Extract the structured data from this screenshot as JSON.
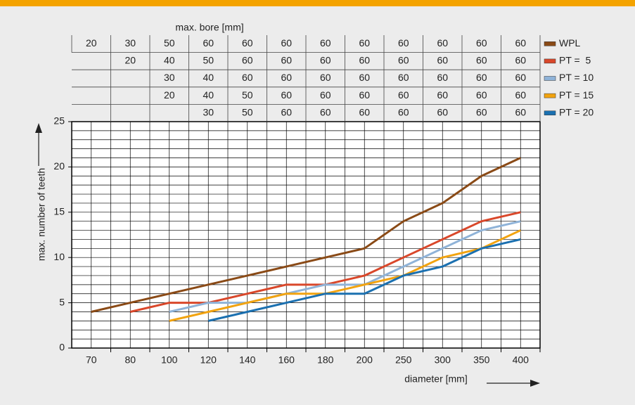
{
  "chart_data": {
    "type": "line",
    "bore_table": {
      "title": "max. bore [mm]",
      "rows": [
        [
          20,
          30,
          50,
          60,
          60,
          60,
          60,
          60,
          60,
          60,
          60,
          60
        ],
        [
          null,
          20,
          40,
          50,
          60,
          60,
          60,
          60,
          60,
          60,
          60,
          60
        ],
        [
          null,
          null,
          30,
          40,
          60,
          60,
          60,
          60,
          60,
          60,
          60,
          60
        ],
        [
          null,
          null,
          20,
          40,
          50,
          60,
          60,
          60,
          60,
          60,
          60,
          60
        ],
        [
          null,
          null,
          null,
          30,
          50,
          60,
          60,
          60,
          60,
          60,
          60,
          60
        ]
      ]
    },
    "x_label": "diameter [mm]",
    "y_label": "max. number of teeth",
    "categories": [
      "70",
      "80",
      "100",
      "120",
      "140",
      "160",
      "180",
      "200",
      "250",
      "300",
      "350",
      "400"
    ],
    "series": [
      {
        "name": "WPL",
        "color": "#8a4a16",
        "values": [
          4,
          5,
          6,
          7,
          8,
          9,
          10,
          11,
          14,
          16,
          19,
          21
        ]
      },
      {
        "name": "PT =  5",
        "color": "#d9472a",
        "values": [
          null,
          4,
          5,
          5,
          6,
          7,
          7,
          8,
          10,
          12,
          14,
          15
        ]
      },
      {
        "name": "PT = 10",
        "color": "#8fb3d8",
        "values": [
          null,
          null,
          4,
          5,
          5,
          6,
          7,
          7,
          9,
          11,
          13,
          14
        ]
      },
      {
        "name": "PT = 15",
        "color": "#f2a30f",
        "values": [
          null,
          null,
          3,
          4,
          5,
          6,
          6,
          7,
          8,
          10,
          11,
          13
        ]
      },
      {
        "name": "PT = 20",
        "color": "#1b70b0",
        "values": [
          null,
          null,
          null,
          3,
          4,
          5,
          6,
          6,
          8,
          9,
          11,
          12
        ]
      }
    ],
    "ylim": [
      0,
      25
    ],
    "yticks": [
      0,
      5,
      10,
      15,
      20,
      25
    ],
    "grid": true
  }
}
